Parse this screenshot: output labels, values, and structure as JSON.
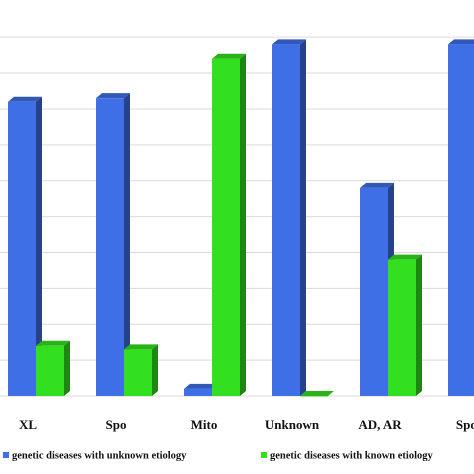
{
  "chart_data": {
    "type": "bar3d",
    "categories": [
      "XL",
      "Spo",
      "Mito",
      "Unknown",
      "AD, AR",
      "Spo."
    ],
    "series": [
      {
        "name": "genetic diseases with unknown etiology",
        "color": "#3f6fe6",
        "values": [
          8.2,
          8.3,
          0.2,
          9.8,
          5.8,
          9.8
        ]
      },
      {
        "name": "genetic diseases with known etiology",
        "color": "#33e01f",
        "values": [
          1.4,
          1.3,
          9.4,
          0,
          3.8,
          null
        ]
      }
    ],
    "ylim": [
      0,
      10.2
    ],
    "yticks": [
      0,
      1,
      2,
      3,
      4,
      5,
      6,
      7,
      8,
      9,
      10
    ],
    "grid": true
  }
}
